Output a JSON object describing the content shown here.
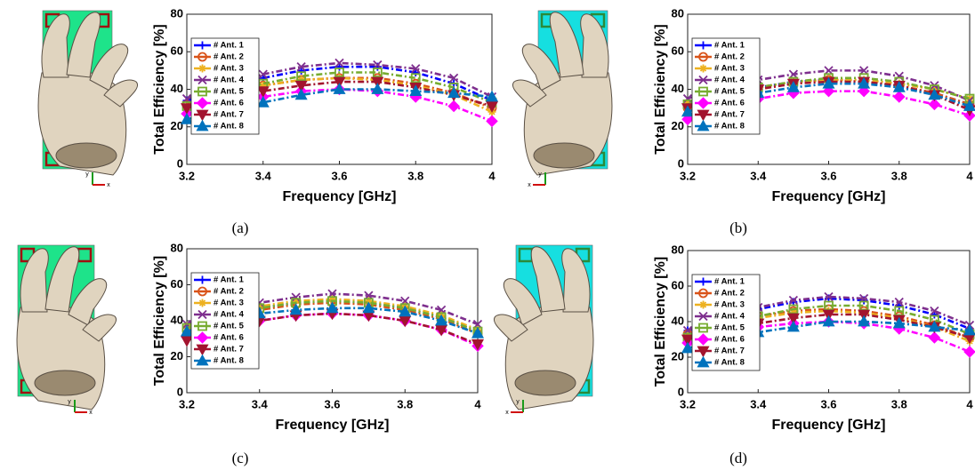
{
  "chart_data": [
    {
      "type": "line",
      "caption": "(a)",
      "illustration_axes": [
        "y",
        "x"
      ],
      "x_label": "Frequency [GHz]",
      "y_label": "Total Efficiency [%]",
      "x": [
        3.2,
        3.3,
        3.4,
        3.5,
        3.6,
        3.7,
        3.8,
        3.9,
        4
      ],
      "xlim": [
        3.2,
        4
      ],
      "xticks": [
        3.2,
        3.4,
        3.6,
        3.8,
        4
      ],
      "ylim": [
        0,
        80
      ],
      "yticks": [
        0,
        20,
        40,
        60,
        80
      ],
      "legend": "upper left",
      "series": [
        {
          "name": "# Ant. 1",
          "color": "#0000ff",
          "marker": "plus",
          "values": [
            34,
            40,
            46,
            50,
            52,
            52,
            49,
            43,
            34
          ]
        },
        {
          "name": "# Ant. 2",
          "color": "#d95319",
          "marker": "circle",
          "values": [
            32,
            38,
            42,
            45,
            46,
            46,
            43,
            38,
            30
          ]
        },
        {
          "name": "# Ant. 3",
          "color": "#edb120",
          "marker": "star",
          "values": [
            31,
            37,
            42,
            45,
            46,
            45,
            42,
            37,
            28
          ]
        },
        {
          "name": "# Ant. 4",
          "color": "#7e2f8e",
          "marker": "cross",
          "values": [
            35,
            42,
            48,
            52,
            54,
            53,
            51,
            46,
            36
          ]
        },
        {
          "name": "# Ant. 5",
          "color": "#77ac30",
          "marker": "square",
          "values": [
            31,
            38,
            43,
            47,
            49,
            49,
            46,
            41,
            33
          ]
        },
        {
          "name": "# Ant. 6",
          "color": "#ff00ff",
          "marker": "diamond",
          "values": [
            27,
            32,
            36,
            39,
            40,
            39,
            36,
            31,
            23
          ]
        },
        {
          "name": "# Ant. 7",
          "color": "#a2142f",
          "marker": "triangle-down",
          "values": [
            30,
            35,
            39,
            42,
            44,
            44,
            41,
            37,
            31
          ]
        },
        {
          "name": "# Ant. 8",
          "color": "#0072bd",
          "marker": "triangle-up",
          "values": [
            24,
            29,
            33,
            37,
            40,
            40,
            39,
            38,
            36
          ]
        }
      ]
    },
    {
      "type": "line",
      "caption": "(b)",
      "illustration_axes": [
        "y",
        "x"
      ],
      "x_label": "Frequency [GHz]",
      "y_label": "Total Efficiency [%]",
      "x": [
        3.2,
        3.3,
        3.4,
        3.5,
        3.6,
        3.7,
        3.8,
        3.9,
        4
      ],
      "xlim": [
        3.2,
        4
      ],
      "xticks": [
        3.2,
        3.4,
        3.6,
        3.8,
        4
      ],
      "ylim": [
        0,
        80
      ],
      "yticks": [
        0,
        20,
        40,
        60,
        80
      ],
      "legend": "upper left",
      "series": [
        {
          "name": "# Ant. 1",
          "color": "#0000ff",
          "marker": "plus",
          "values": [
            31,
            37,
            41,
            44,
            45,
            44,
            42,
            38,
            32
          ]
        },
        {
          "name": "# Ant. 2",
          "color": "#d95319",
          "marker": "circle",
          "values": [
            30,
            35,
            40,
            43,
            45,
            44,
            42,
            38,
            32
          ]
        },
        {
          "name": "# Ant. 3",
          "color": "#edb120",
          "marker": "star",
          "values": [
            33,
            37,
            41,
            44,
            45,
            45,
            43,
            40,
            35
          ]
        },
        {
          "name": "# Ant. 4",
          "color": "#7e2f8e",
          "marker": "cross",
          "values": [
            35,
            41,
            45,
            48,
            50,
            50,
            47,
            42,
            34
          ]
        },
        {
          "name": "# Ant. 5",
          "color": "#77ac30",
          "marker": "square",
          "values": [
            32,
            37,
            41,
            44,
            46,
            46,
            44,
            40,
            35
          ]
        },
        {
          "name": "# Ant. 6",
          "color": "#ff00ff",
          "marker": "diamond",
          "values": [
            24,
            31,
            35,
            38,
            39,
            39,
            36,
            32,
            26
          ]
        },
        {
          "name": "# Ant. 7",
          "color": "#a2142f",
          "marker": "triangle-down",
          "values": [
            30,
            36,
            40,
            43,
            44,
            44,
            42,
            37,
            29
          ]
        },
        {
          "name": "# Ant. 8",
          "color": "#0072bd",
          "marker": "triangle-up",
          "values": [
            28,
            34,
            38,
            41,
            43,
            43,
            41,
            37,
            31
          ]
        }
      ]
    },
    {
      "type": "line",
      "caption": "(c)",
      "illustration_axes": [
        "y",
        "x"
      ],
      "x_label": "Frequency [GHz]",
      "y_label": "Total Efficiency [%]",
      "x": [
        3.2,
        3.3,
        3.4,
        3.5,
        3.6,
        3.7,
        3.8,
        3.9,
        4
      ],
      "xlim": [
        3.2,
        4
      ],
      "xticks": [
        3.2,
        3.4,
        3.6,
        3.8,
        4
      ],
      "ylim": [
        0,
        80
      ],
      "yticks": [
        0,
        20,
        40,
        60,
        80
      ],
      "legend": "upper left",
      "series": [
        {
          "name": "# Ant. 1",
          "color": "#0000ff",
          "marker": "plus",
          "values": [
            36,
            42,
            47,
            50,
            51,
            50,
            47,
            42,
            34
          ]
        },
        {
          "name": "# Ant. 2",
          "color": "#d95319",
          "marker": "circle",
          "values": [
            35,
            41,
            46,
            49,
            50,
            49,
            46,
            41,
            33
          ]
        },
        {
          "name": "# Ant. 3",
          "color": "#edb120",
          "marker": "star",
          "values": [
            37,
            43,
            48,
            51,
            52,
            51,
            48,
            43,
            35
          ]
        },
        {
          "name": "# Ant. 4",
          "color": "#7e2f8e",
          "marker": "cross",
          "values": [
            38,
            45,
            50,
            53,
            55,
            54,
            51,
            46,
            38
          ]
        },
        {
          "name": "# Ant. 5",
          "color": "#77ac30",
          "marker": "square",
          "values": [
            36,
            42,
            47,
            50,
            51,
            50,
            47,
            42,
            34
          ]
        },
        {
          "name": "# Ant. 6",
          "color": "#ff00ff",
          "marker": "diamond",
          "values": [
            31,
            36,
            40,
            43,
            44,
            43,
            40,
            35,
            26
          ]
        },
        {
          "name": "# Ant. 7",
          "color": "#a2142f",
          "marker": "triangle-down",
          "values": [
            29,
            36,
            40,
            43,
            44,
            43,
            40,
            35,
            27
          ]
        },
        {
          "name": "# Ant. 8",
          "color": "#0072bd",
          "marker": "triangle-up",
          "values": [
            34,
            40,
            44,
            46,
            47,
            47,
            45,
            40,
            33
          ]
        }
      ]
    },
    {
      "type": "line",
      "caption": "(d)",
      "illustration_axes": [
        "y",
        "x"
      ],
      "x_label": "Frequency [GHz]",
      "y_label": "Total Efficiency [%]",
      "x": [
        3.2,
        3.3,
        3.4,
        3.5,
        3.6,
        3.7,
        3.8,
        3.9,
        4
      ],
      "xlim": [
        3.2,
        4
      ],
      "xticks": [
        3.2,
        3.4,
        3.6,
        3.8,
        4
      ],
      "ylim": [
        0,
        80
      ],
      "yticks": [
        0,
        20,
        40,
        60,
        80
      ],
      "legend": "upper left",
      "series": [
        {
          "name": "# Ant. 1",
          "color": "#0000ff",
          "marker": "plus",
          "values": [
            35,
            41,
            47,
            51,
            53,
            52,
            49,
            44,
            36
          ]
        },
        {
          "name": "# Ant. 2",
          "color": "#d95319",
          "marker": "circle",
          "values": [
            33,
            38,
            43,
            46,
            47,
            46,
            43,
            38,
            31
          ]
        },
        {
          "name": "# Ant. 3",
          "color": "#edb120",
          "marker": "star",
          "values": [
            32,
            38,
            42,
            45,
            46,
            45,
            42,
            37,
            29
          ]
        },
        {
          "name": "# Ant. 4",
          "color": "#7e2f8e",
          "marker": "cross",
          "values": [
            35,
            42,
            48,
            52,
            54,
            53,
            51,
            46,
            38
          ]
        },
        {
          "name": "# Ant. 5",
          "color": "#77ac30",
          "marker": "square",
          "values": [
            31,
            38,
            43,
            47,
            49,
            49,
            46,
            41,
            33
          ]
        },
        {
          "name": "# Ant. 6",
          "color": "#ff00ff",
          "marker": "diamond",
          "values": [
            28,
            33,
            37,
            39,
            40,
            39,
            36,
            31,
            23
          ]
        },
        {
          "name": "# Ant. 7",
          "color": "#a2142f",
          "marker": "triangle-down",
          "values": [
            30,
            35,
            39,
            42,
            44,
            44,
            41,
            37,
            31
          ]
        },
        {
          "name": "# Ant. 8",
          "color": "#0072bd",
          "marker": "triangle-up",
          "values": [
            25,
            30,
            34,
            37,
            40,
            40,
            39,
            37,
            35
          ]
        }
      ]
    }
  ]
}
